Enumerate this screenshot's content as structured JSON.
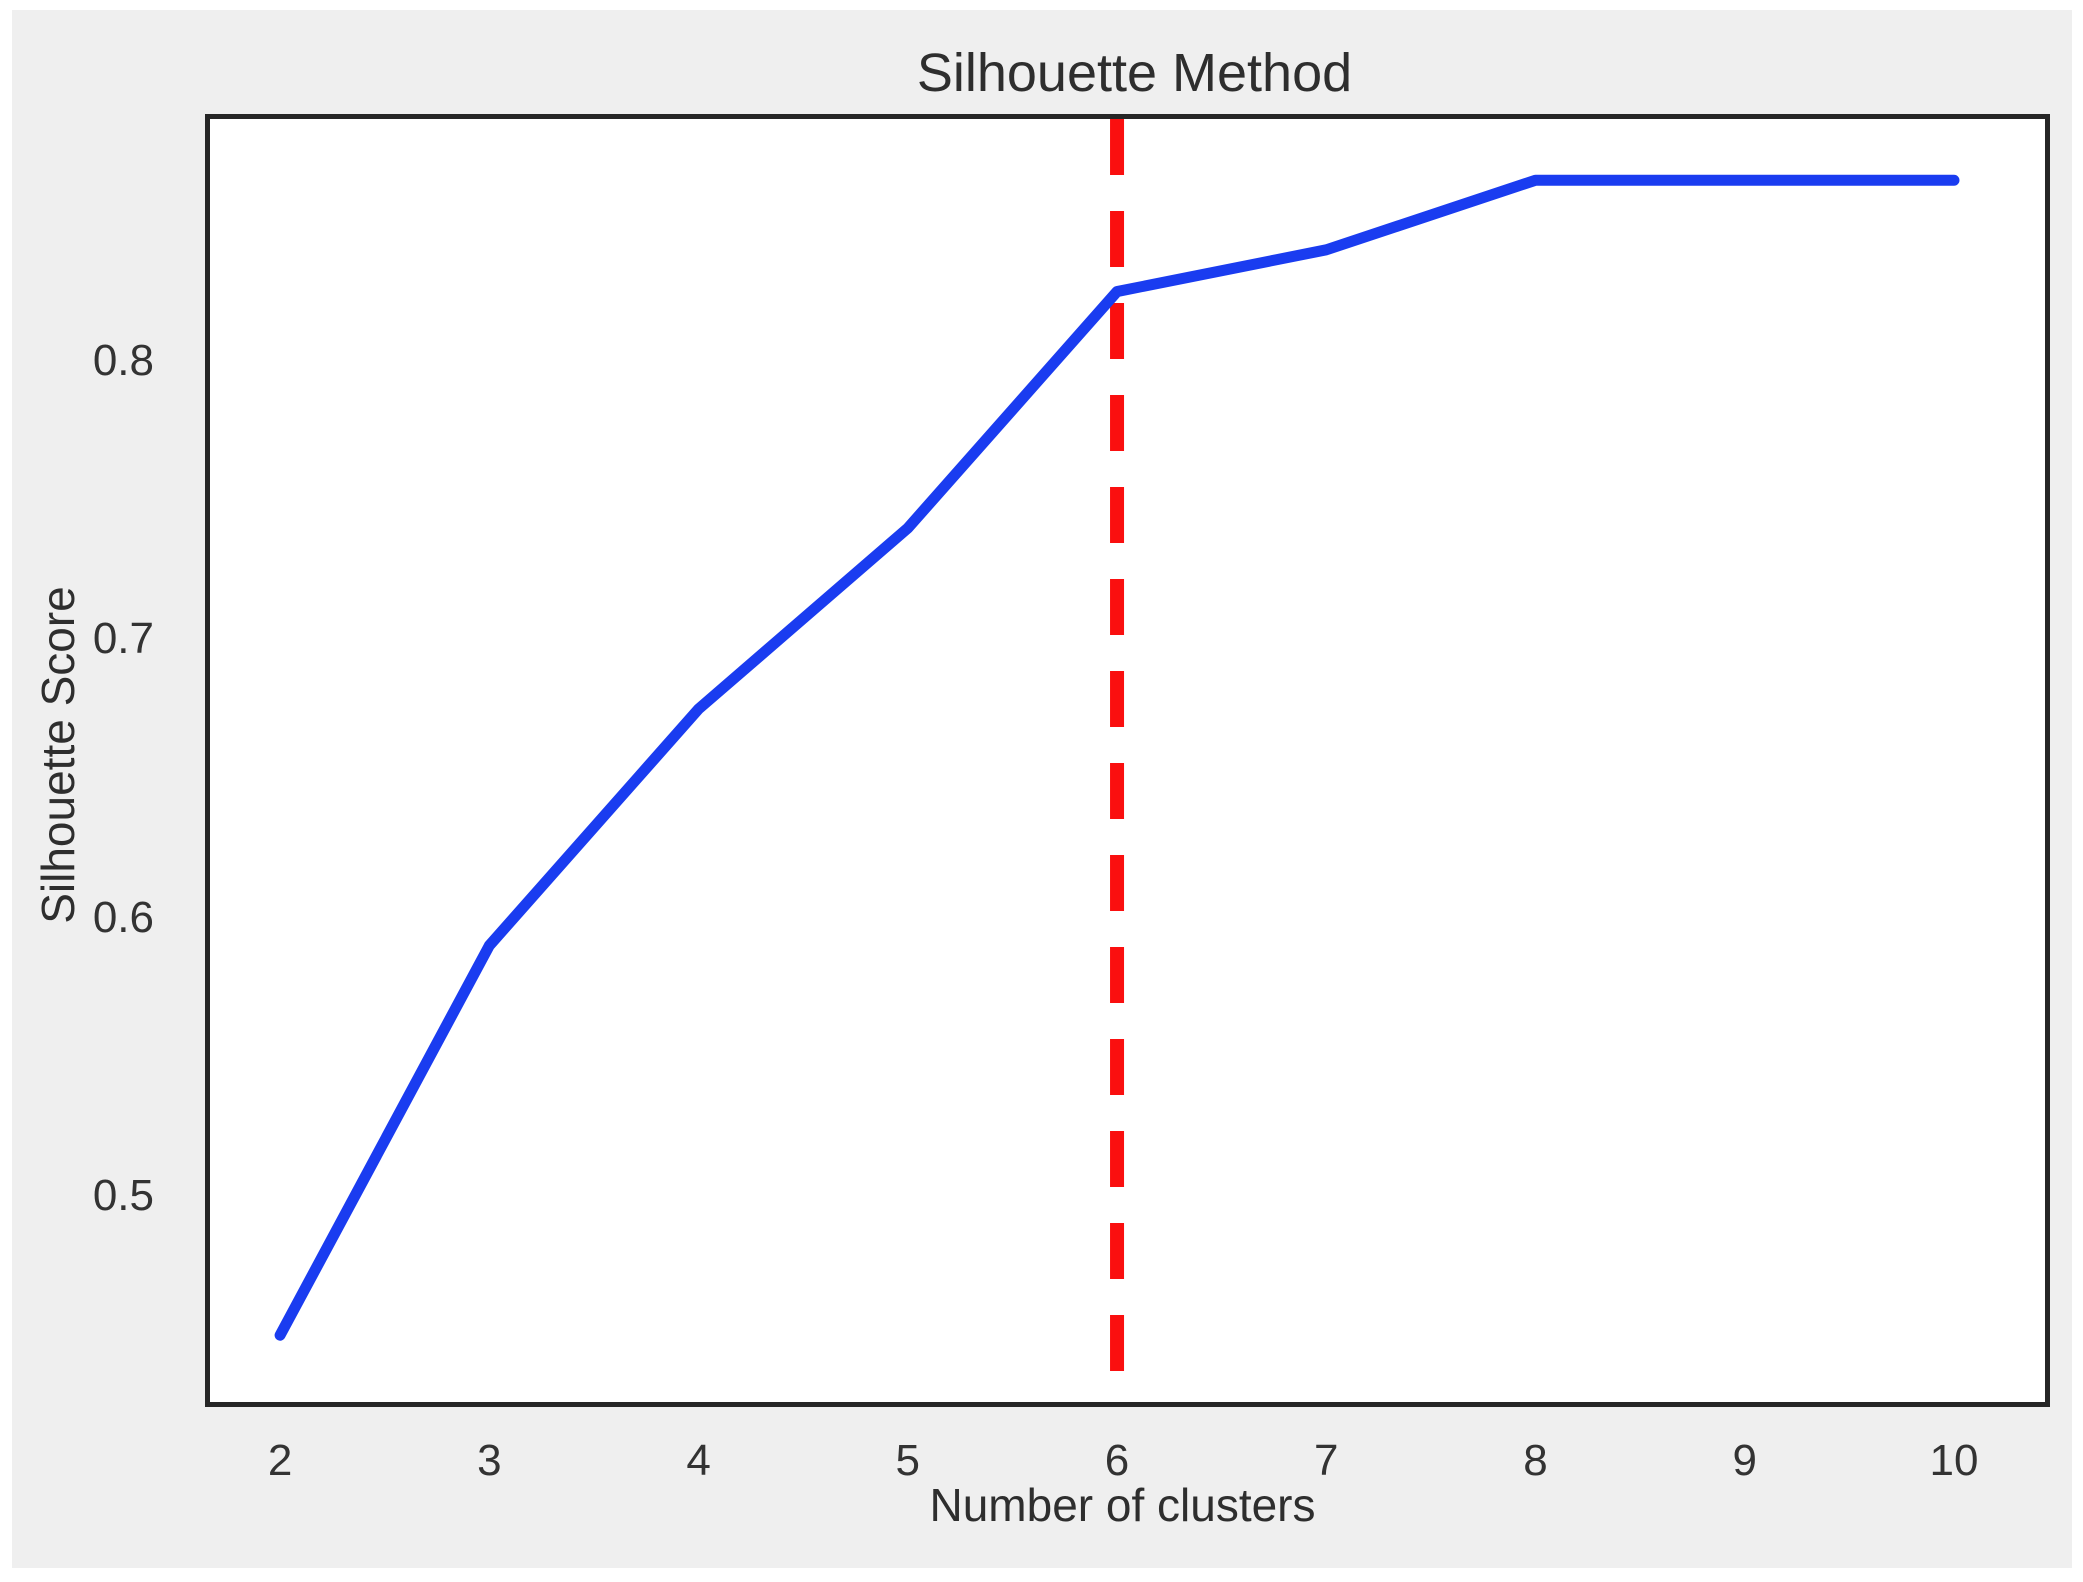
{
  "figure": {
    "background_color": "#efefef",
    "page_background_color": "#ffffff",
    "frame_color": "#262626",
    "text_color": "#2e2e2e",
    "tick_text_color": "#333333"
  },
  "chart_data": {
    "type": "line",
    "title": "Silhouette Method",
    "xlabel": "Number of clusters",
    "ylabel": "Silhouette Score",
    "x": [
      2,
      3,
      4,
      5,
      6,
      7,
      8,
      9,
      10
    ],
    "y": [
      0.45,
      0.59,
      0.675,
      0.74,
      0.825,
      0.84,
      0.865,
      0.865,
      0.865
    ],
    "series_name": "Silhouette Score",
    "series_color": "#1a3cf0",
    "line_width": 11,
    "xticks": [
      2,
      3,
      4,
      5,
      6,
      7,
      8,
      9,
      10
    ],
    "yticks": [
      "0.5",
      "0.6",
      "0.7",
      "0.8"
    ],
    "xlim": [
      1.665,
      10.435
    ],
    "ylim": [
      0.426,
      0.887
    ],
    "vline": {
      "x": 6,
      "color": "#fa0f0f",
      "style": "dashed",
      "width": 14,
      "dash": "56 36"
    },
    "grid": false,
    "legend": "none"
  }
}
